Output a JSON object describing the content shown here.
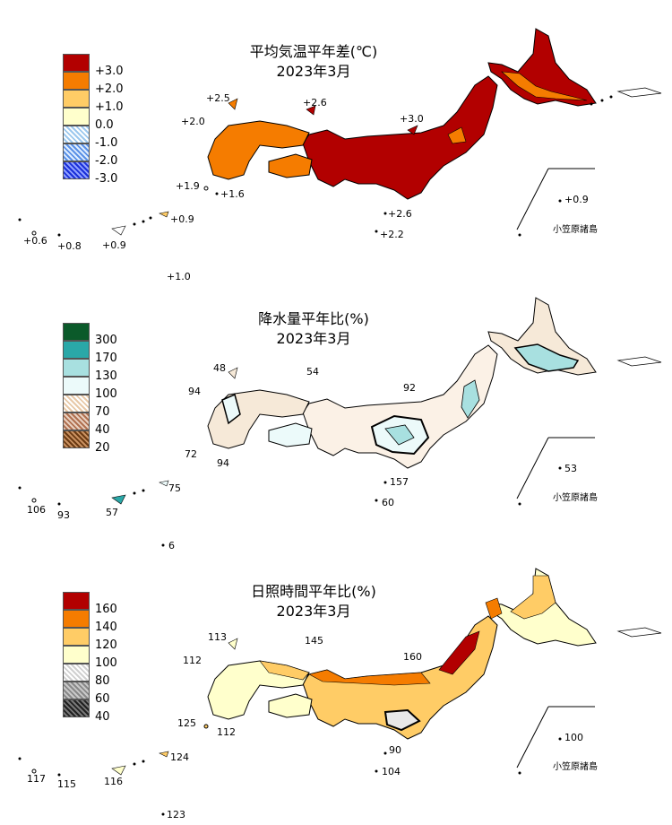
{
  "panels": [
    {
      "title_line1": "平均気温平年差(℃)",
      "title_line2": "2023年3月",
      "legend": [
        {
          "label": "+3.0",
          "color": "#b20000"
        },
        {
          "label": "+2.0",
          "color": "#f57c00"
        },
        {
          "label": "+1.0",
          "color": "#ffcc66"
        },
        {
          "label": "0.0",
          "color": "#ffffcc"
        },
        {
          "label": "-1.0",
          "color": "#e6f4ff"
        },
        {
          "label": "-2.0",
          "color": "#88b8f0"
        },
        {
          "label": "-3.0",
          "color": "#1a2fd8"
        }
      ],
      "values": [
        "+2.5",
        "+2.6",
        "+2.0",
        "+3.0",
        "+1.9",
        "+1.6",
        "+0.9",
        "+0.9",
        "+2.6",
        "+2.2",
        "+0.6",
        "+0.8",
        "+0.9",
        "+1.0"
      ],
      "bonin_label": "小笠原諸島",
      "main_fill": "#b20000",
      "west_fill": "#f57c00"
    },
    {
      "title_line1": "降水量平年比(%)",
      "title_line2": "2023年3月",
      "legend": [
        {
          "label": "300",
          "color": "#0b5a2a"
        },
        {
          "label": "170",
          "color": "#2aa8a8"
        },
        {
          "label": "130",
          "color": "#a8e0e0"
        },
        {
          "label": "100",
          "color": "#ecfafa"
        },
        {
          "label": "70",
          "color": "#f6e9d8"
        },
        {
          "label": "40",
          "color": "#c88a60"
        },
        {
          "label": "20",
          "color": "#6b3a12"
        }
      ],
      "values": [
        "48",
        "54",
        "94",
        "92",
        "72",
        "94",
        "75",
        "53",
        "157",
        "106",
        "93",
        "57",
        "60",
        "6"
      ],
      "bonin_label": "小笠原諸島",
      "main_fill": "#fbf1e6",
      "west_fill": "#f6e9d8"
    },
    {
      "title_line1": "日照時間平年比(%)",
      "title_line2": "2023年3月",
      "legend": [
        {
          "label": "160",
          "color": "#b20000"
        },
        {
          "label": "140",
          "color": "#f57c00"
        },
        {
          "label": "120",
          "color": "#ffcc66"
        },
        {
          "label": "100",
          "color": "#ffffcc"
        },
        {
          "label": "80",
          "color": "#e8e8e8"
        },
        {
          "label": "60",
          "color": "#a0a0a0"
        },
        {
          "label": "40",
          "color": "#303030"
        }
      ],
      "values": [
        "113",
        "145",
        "112",
        "160",
        "125",
        "112",
        "124",
        "100",
        "90",
        "117",
        "115",
        "116",
        "104",
        "123"
      ],
      "bonin_label": "小笠原諸島",
      "main_fill": "#ffcc66",
      "west_fill": "#ffffcc"
    }
  ]
}
